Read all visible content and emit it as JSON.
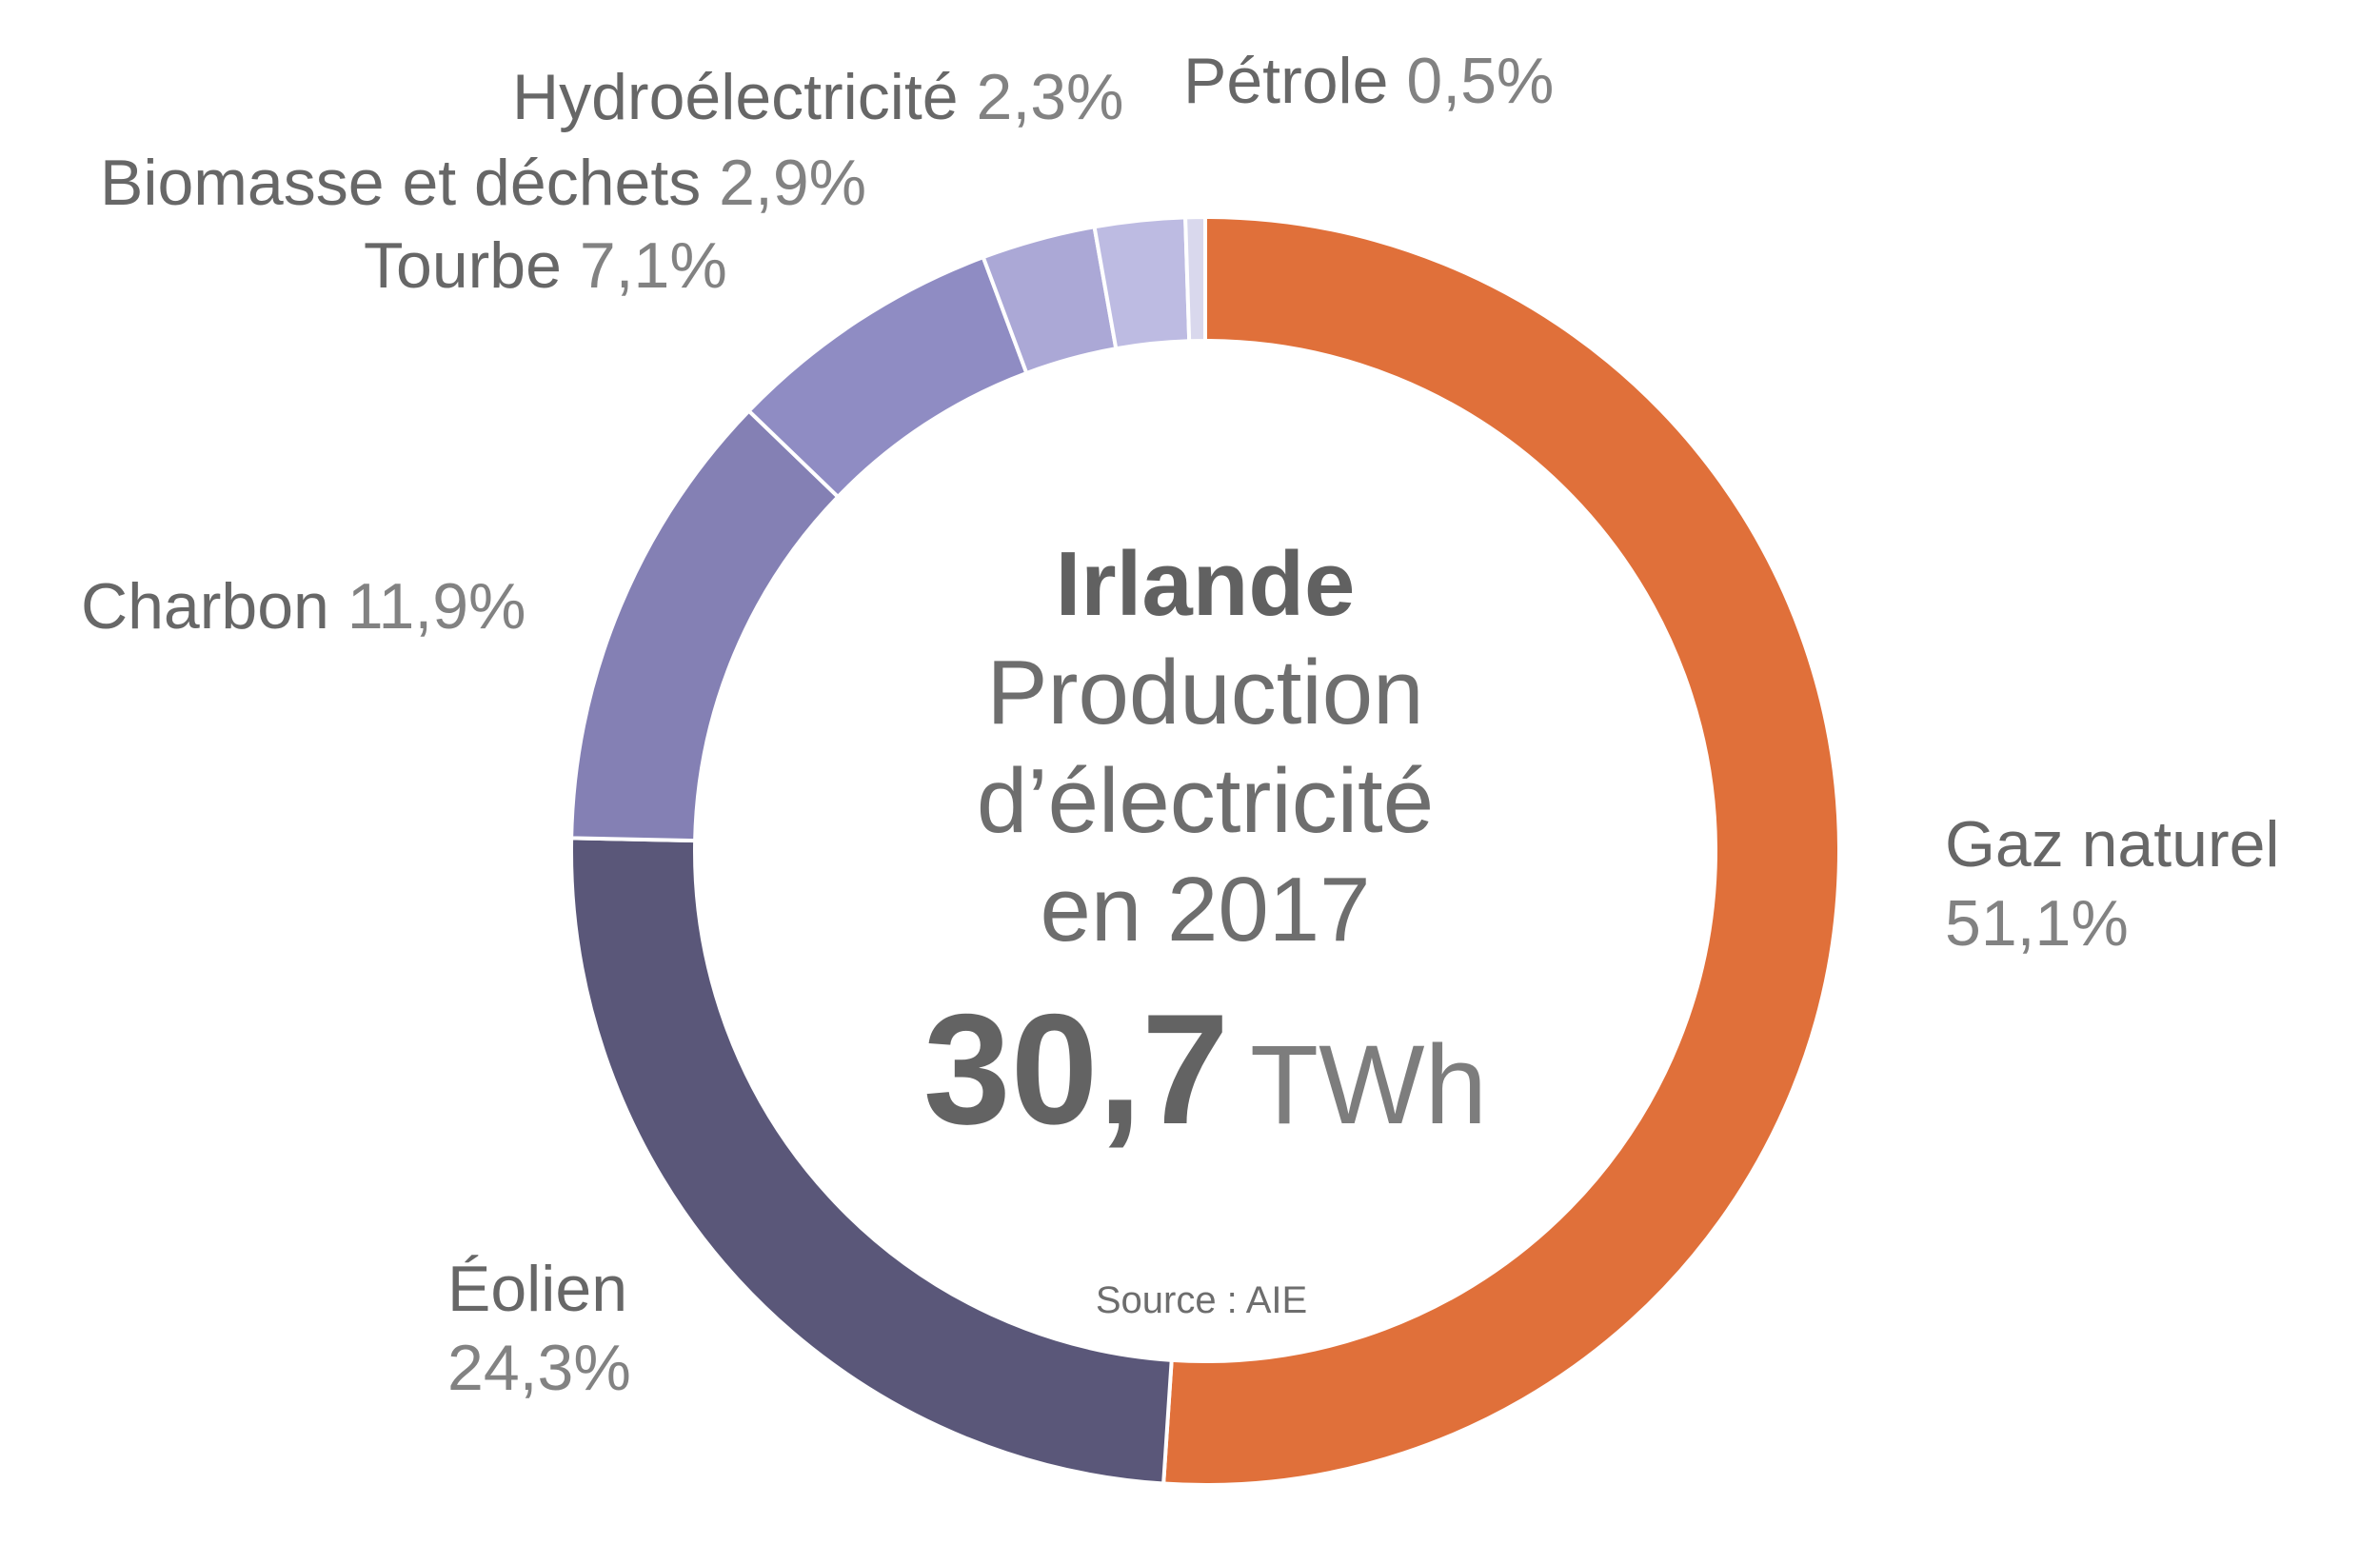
{
  "chart_data": {
    "type": "pie",
    "variant": "donut",
    "title": "Irlande — Production d'électricité en 2017",
    "start_angle_deg": 0,
    "direction": "clockwise",
    "center": {
      "country": "Irlande",
      "subtitle_lines": [
        "Production",
        "d’électricité",
        "en 2017"
      ],
      "value": "30,7",
      "unit": "TWh",
      "source": "Source : AIE"
    },
    "total": {
      "value": 30.7,
      "unit": "TWh"
    },
    "segments": [
      {
        "label": "Gaz naturel",
        "pct": 51.1,
        "pct_display": "51,1%",
        "color": "#e0703a"
      },
      {
        "label": "Éolien",
        "pct": 24.3,
        "pct_display": "24,3%",
        "color": "#5a5779"
      },
      {
        "label": "Charbon",
        "pct": 11.9,
        "pct_display": "11,9%",
        "color": "#8480b4"
      },
      {
        "label": "Tourbe",
        "pct": 7.1,
        "pct_display": "7,1%",
        "color": "#8f8cc3"
      },
      {
        "label": "Biomasse et déchets",
        "pct": 2.9,
        "pct_display": "2,9%",
        "color": "#aba8d6"
      },
      {
        "label": "Hydroélectricité",
        "pct": 2.3,
        "pct_display": "2,3%",
        "color": "#bdbbe2"
      },
      {
        "label": "Pétrole",
        "pct": 0.5,
        "pct_display": "0,5%",
        "color": "#d9d8ed"
      }
    ]
  },
  "palette": {
    "background": "#ffffff",
    "segment_gap_color": "#ffffff",
    "label_name_color": "#676767",
    "label_value_color": "#828282",
    "center_country_color": "#616161",
    "center_subtitle_color": "#6e6e6e",
    "center_value_color": "#636363",
    "center_unit_color": "#7d7d7d",
    "source_color": "#6d6d6d"
  }
}
